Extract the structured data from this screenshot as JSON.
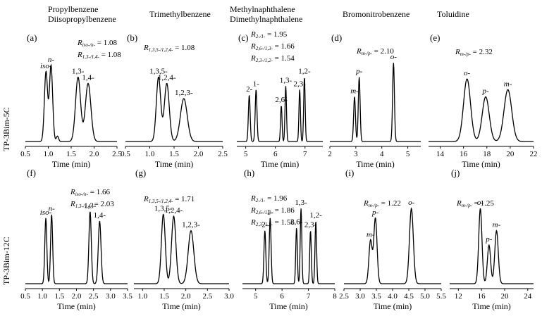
{
  "column_headers": [
    [
      "Propylbenzene",
      "Diisopropylbenzene"
    ],
    [
      "Trimethylbenzene"
    ],
    [
      "Methylnaphthalene",
      "Dimethylnaphthalene"
    ],
    [
      "Bromonitrobenzene"
    ],
    [
      "Toluidine"
    ]
  ],
  "row_labels": [
    "TP-3Bim-5C",
    "TP-3Bim-12C"
  ],
  "chart_data": [
    {
      "type": "line",
      "panel": "(a)",
      "xlabel": "Time (min)",
      "xlim": [
        0.5,
        2.5
      ],
      "xticks": [
        "0.5",
        "1.0",
        "1.5",
        "2.0",
        "2.5"
      ],
      "peaks": [
        {
          "label": "iso-",
          "t": 0.95,
          "h": 0.78,
          "w": 0.035
        },
        {
          "label": "n-",
          "t": 1.06,
          "h": 0.85,
          "w": 0.035
        },
        {
          "label": "",
          "t": 1.2,
          "h": 0.06,
          "w": 0.025
        },
        {
          "label": "1,3-",
          "t": 1.65,
          "h": 0.72,
          "w": 0.055
        },
        {
          "label": "1,4-",
          "t": 1.87,
          "h": 0.65,
          "w": 0.06
        }
      ],
      "annotations": [
        {
          "sym": "R",
          "sub": "iso-/n-",
          "val": "= 1.08"
        },
        {
          "sym": "R",
          "sub": "1,3-/1,4-",
          "val": "= 1.08"
        }
      ]
    },
    {
      "type": "line",
      "panel": "(b)",
      "xlabel": "Time (min)",
      "xlim": [
        0.5,
        2.5
      ],
      "xticks": [
        "0.5",
        "1.0",
        "1.5",
        "2.0",
        "2.5"
      ],
      "peaks": [
        {
          "label": "1,3,5-",
          "t": 1.18,
          "h": 0.72,
          "w": 0.045
        },
        {
          "label": "1,2,4-",
          "t": 1.35,
          "h": 0.65,
          "w": 0.05
        },
        {
          "label": "1,2,3-",
          "t": 1.7,
          "h": 0.48,
          "w": 0.07
        }
      ],
      "annotations": [
        {
          "sym": "R",
          "sub": "1,3,5-/1,2,4-",
          "val": "= 1.08"
        }
      ]
    },
    {
      "type": "line",
      "panel": "(c)",
      "xlabel": "Time (min)",
      "xlim": [
        4.7,
        7.6
      ],
      "xticks": [
        "5",
        "6",
        "7"
      ],
      "peaks": [
        {
          "label": "2-",
          "t": 5.12,
          "h": 0.52,
          "w": 0.03
        },
        {
          "label": "1-",
          "t": 5.35,
          "h": 0.58,
          "w": 0.03
        },
        {
          "label": "2,6-",
          "t": 6.2,
          "h": 0.4,
          "w": 0.025
        },
        {
          "label": "1,3-",
          "t": 6.35,
          "h": 0.62,
          "w": 0.025
        },
        {
          "label": "2,3-",
          "t": 6.82,
          "h": 0.58,
          "w": 0.025
        },
        {
          "label": "1,2-",
          "t": 6.98,
          "h": 0.72,
          "w": 0.025
        }
      ],
      "annotations": [
        {
          "sym": "R",
          "sub": "2-/1-",
          "val": "= 1.95"
        },
        {
          "sym": "R",
          "sub": "2,6-/1,3-",
          "val": "= 1.66"
        },
        {
          "sym": "R",
          "sub": "2,3-/1,2-",
          "val": "= 1.54"
        }
      ]
    },
    {
      "type": "line",
      "panel": "(d)",
      "xlabel": "Time (min)",
      "xlim": [
        2.0,
        5.5
      ],
      "xticks": [
        "2",
        "3",
        "4",
        "5"
      ],
      "peaks": [
        {
          "label": "m-",
          "t": 2.95,
          "h": 0.5,
          "w": 0.035
        },
        {
          "label": "p-",
          "t": 3.13,
          "h": 0.72,
          "w": 0.035
        },
        {
          "label": "o-",
          "t": 4.45,
          "h": 0.88,
          "w": 0.035
        }
      ],
      "annotations": [
        {
          "sym": "R",
          "sub": "m-/p-",
          "val": "= 2.10"
        }
      ]
    },
    {
      "type": "line",
      "panel": "(e)",
      "xlabel": "Time (min)",
      "xlim": [
        13.0,
        22.0
      ],
      "xticks": [
        "14",
        "16",
        "18",
        "20",
        "22"
      ],
      "peaks": [
        {
          "label": "o-",
          "t": 16.3,
          "h": 0.7,
          "w": 0.3
        },
        {
          "label": "p-",
          "t": 17.9,
          "h": 0.5,
          "w": 0.3
        },
        {
          "label": "m-",
          "t": 19.8,
          "h": 0.58,
          "w": 0.33
        }
      ],
      "annotations": [
        {
          "sym": "R",
          "sub": "m-/p-",
          "val": "= 2.32"
        }
      ]
    },
    {
      "type": "line",
      "panel": "(f)",
      "xlabel": "Time (min)",
      "xlim": [
        0.5,
        3.5
      ],
      "xticks": [
        "0.5",
        "1.0",
        "1.5",
        "2.0",
        "2.5",
        "3.0",
        "3.5"
      ],
      "peaks": [
        {
          "label": "iso-",
          "t": 1.1,
          "h": 0.68,
          "w": 0.03
        },
        {
          "label": "n-",
          "t": 1.27,
          "h": 0.72,
          "w": 0.03
        },
        {
          "label": "1,3-",
          "t": 2.4,
          "h": 0.75,
          "w": 0.035
        },
        {
          "label": "1,4-",
          "t": 2.68,
          "h": 0.65,
          "w": 0.04
        }
      ],
      "annotations": [
        {
          "sym": "R",
          "sub": "iso-/n-",
          "val": "= 1.66"
        },
        {
          "sym": "R",
          "sub": "1,3-/1,4-",
          "val": "= 2.03"
        }
      ]
    },
    {
      "type": "line",
      "panel": "(g)",
      "xlabel": "Time (min)",
      "xlim": [
        0.8,
        3.0
      ],
      "xticks": [
        "1.0",
        "1.5",
        "2.0",
        "2.5",
        "3.0"
      ],
      "peaks": [
        {
          "label": "1,3,5-",
          "t": 1.48,
          "h": 0.72,
          "w": 0.045
        },
        {
          "label": "1,2,4-",
          "t": 1.72,
          "h": 0.7,
          "w": 0.05
        },
        {
          "label": "1,2,3-",
          "t": 2.12,
          "h": 0.55,
          "w": 0.065
        }
      ],
      "annotations": [
        {
          "sym": "R",
          "sub": "1,3,5-/1,2,4-",
          "val": "= 1.71"
        }
      ]
    },
    {
      "type": "line",
      "panel": "(h)",
      "xlabel": "Time (min)",
      "xlim": [
        4.5,
        8.0
      ],
      "xticks": [
        "5",
        "6",
        "7",
        "8"
      ],
      "peaks": [
        {
          "label": "2-",
          "t": 5.35,
          "h": 0.55,
          "w": 0.035
        },
        {
          "label": "1-",
          "t": 5.55,
          "h": 0.68,
          "w": 0.035
        },
        {
          "label": "2,6-",
          "t": 6.55,
          "h": 0.58,
          "w": 0.03
        },
        {
          "label": "1,3-",
          "t": 6.72,
          "h": 0.78,
          "w": 0.03
        },
        {
          "label": "2,3-",
          "t": 7.08,
          "h": 0.55,
          "w": 0.03
        },
        {
          "label": "1,2-",
          "t": 7.28,
          "h": 0.65,
          "w": 0.03
        }
      ],
      "annotations": [
        {
          "sym": "R",
          "sub": "2-/1-",
          "val": "= 1.96"
        },
        {
          "sym": "R",
          "sub": "2,6-/1,3-",
          "val": "= 1.86"
        },
        {
          "sym": "R",
          "sub": "2,3-/1,2-",
          "val": "= 1.56"
        }
      ]
    },
    {
      "type": "line",
      "panel": "(i)",
      "xlabel": "Time (min)",
      "xlim": [
        2.5,
        5.5
      ],
      "xticks": [
        "2.5",
        "3.0",
        "3.5",
        "4.0",
        "4.5",
        "5.0",
        "5.5"
      ],
      "peaks": [
        {
          "label": "m-",
          "t": 3.32,
          "h": 0.45,
          "w": 0.05
        },
        {
          "label": "p-",
          "t": 3.47,
          "h": 0.68,
          "w": 0.05
        },
        {
          "label": "o-",
          "t": 4.58,
          "h": 0.78,
          "w": 0.06
        }
      ],
      "annotations": [
        {
          "sym": "R",
          "sub": "m-/p-",
          "val": "= 1.22"
        }
      ]
    },
    {
      "type": "line",
      "panel": "(j)",
      "xlabel": "Time (min)",
      "xlim": [
        10.5,
        25.0
      ],
      "xticks": [
        "12",
        "16",
        "20",
        "24"
      ],
      "peaks": [
        {
          "label": "o-",
          "t": 15.8,
          "h": 0.78,
          "w": 0.28
        },
        {
          "label": "p-",
          "t": 17.3,
          "h": 0.4,
          "w": 0.28
        },
        {
          "label": "m-",
          "t": 18.6,
          "h": 0.55,
          "w": 0.3
        }
      ],
      "annotations": [
        {
          "sym": "R",
          "sub": "m-/p-",
          "val": "= 1.25"
        }
      ]
    }
  ]
}
